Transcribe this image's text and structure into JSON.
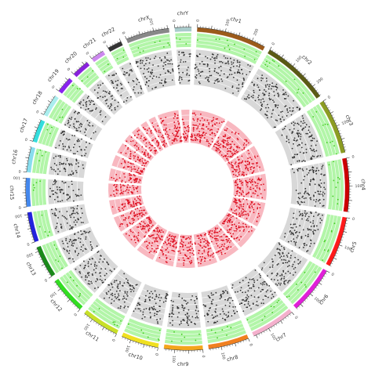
{
  "chart_data": {
    "type": "circos",
    "title": "",
    "ideogram_colors": {
      "chr1": "#9b5a1a",
      "chr2": "#5a5a14",
      "chr3": "#8c9c22",
      "chr4": "#cc0000",
      "chr5": "#ff1a1a",
      "chr6": "#e020d8",
      "chr7": "#f4b0cc",
      "chr8": "#f08020",
      "chr9": "#f4a51c",
      "chr10": "#f0e020",
      "chr11": "#c8e028",
      "chr12": "#33dd22",
      "chr13": "#1a8a1a",
      "chr14": "#2222dd",
      "chr15": "#4488ee",
      "chr16": "#88ddee",
      "chr17": "#33dddd",
      "chr18": "#aaeeee",
      "chr19": "#8822ee",
      "chr20": "#8822dd",
      "chr21": "#cc88ee",
      "chr22": "#333333",
      "chrX": "#888888",
      "chrY": "#aacccc"
    },
    "track_colors": {
      "outer_bg": "#b2f5a8",
      "outer_points": "#44cc22",
      "middle_bg": "#d8d8d8",
      "middle_points": "#333333",
      "inner_bg": "#f8b8c0",
      "inner_points": "#dd1122"
    },
    "chromosomes": [
      {
        "name": "chr1",
        "size": 249,
        "ticks": [
          0,
          100,
          200
        ]
      },
      {
        "name": "chr2",
        "size": 243,
        "ticks": [
          0,
          100,
          200
        ]
      },
      {
        "name": "chr3",
        "size": 198,
        "ticks": [
          0,
          100
        ]
      },
      {
        "name": "chr4",
        "size": 191,
        "ticks": [
          0,
          100
        ]
      },
      {
        "name": "chr5",
        "size": 181,
        "ticks": [
          0,
          100
        ]
      },
      {
        "name": "chr6",
        "size": 171,
        "ticks": [
          0,
          100
        ]
      },
      {
        "name": "chr7",
        "size": 159,
        "ticks": [
          0,
          100
        ]
      },
      {
        "name": "chr8",
        "size": 145,
        "ticks": [
          0,
          100
        ]
      },
      {
        "name": "chr9",
        "size": 138,
        "ticks": [
          0,
          100
        ]
      },
      {
        "name": "chr10",
        "size": 134,
        "ticks": [
          0,
          100
        ]
      },
      {
        "name": "chr11",
        "size": 135,
        "ticks": [
          0,
          100
        ]
      },
      {
        "name": "chr12",
        "size": 133,
        "ticks": [
          0,
          100
        ]
      },
      {
        "name": "chr13",
        "size": 115,
        "ticks": [
          0,
          100
        ]
      },
      {
        "name": "chr14",
        "size": 107,
        "ticks": [
          0,
          100
        ]
      },
      {
        "name": "chr15",
        "size": 102,
        "ticks": [
          0,
          100
        ]
      },
      {
        "name": "chr16",
        "size": 90,
        "ticks": [
          0
        ]
      },
      {
        "name": "chr17",
        "size": 81,
        "ticks": [
          0
        ]
      },
      {
        "name": "chr18",
        "size": 78,
        "ticks": [
          0
        ]
      },
      {
        "name": "chr19",
        "size": 59,
        "ticks": [
          0
        ]
      },
      {
        "name": "chr20",
        "size": 63,
        "ticks": [
          0
        ]
      },
      {
        "name": "chr21",
        "size": 48,
        "ticks": [
          0
        ]
      },
      {
        "name": "chr22",
        "size": 51,
        "ticks": [
          0
        ]
      },
      {
        "name": "chrX",
        "size": 155,
        "ticks": [
          0,
          100
        ]
      },
      {
        "name": "chrY",
        "size": 59,
        "ticks": [
          0
        ]
      }
    ]
  }
}
